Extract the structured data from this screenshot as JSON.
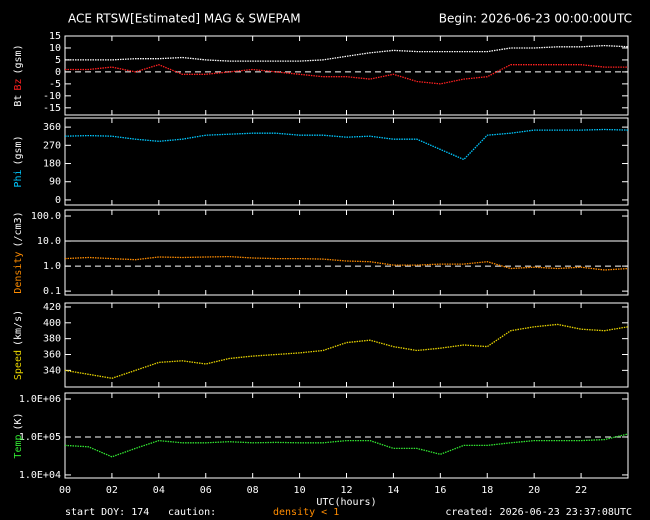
{
  "header": {
    "title": "ACE RTSW[Estimated] MAG & SWEPAM",
    "begin": "Begin: 2026-06-23 00:00:00UTC"
  },
  "chart_data": [
    {
      "type": "line",
      "ylabel_parts": [
        {
          "text": "Bt",
          "color": "#ffffff"
        },
        {
          "text": "Bz",
          "color": "#ff2020"
        },
        {
          "text": "(gsm)",
          "color": "#ffffff"
        }
      ],
      "x": [
        0,
        1,
        2,
        3,
        4,
        5,
        6,
        7,
        8,
        9,
        10,
        11,
        12,
        13,
        14,
        15,
        16,
        17,
        18,
        19,
        20,
        21,
        22,
        23,
        24
      ],
      "series": [
        {
          "name": "Bt",
          "color": "#ffffff",
          "values": [
            5,
            5,
            5,
            5.5,
            5.5,
            6,
            5,
            4.5,
            4.5,
            4.5,
            4.5,
            5,
            6.5,
            8,
            9,
            8.5,
            8.5,
            8.5,
            8.5,
            10,
            10,
            10.5,
            10.5,
            11,
            10.5
          ]
        },
        {
          "name": "Bz",
          "color": "#ff2020",
          "values": [
            1,
            1,
            2,
            0,
            3,
            -1,
            -1,
            0,
            1,
            0,
            -1,
            -2,
            -2,
            -3,
            -1,
            -4,
            -5,
            -3,
            -2,
            3,
            3,
            3,
            3,
            2,
            2
          ]
        }
      ],
      "ref_lines": [
        {
          "value": 0,
          "dashed": true
        }
      ],
      "xlim": [
        0,
        24
      ],
      "ylim": [
        -18,
        15
      ],
      "log": false,
      "yticks": [
        15,
        10,
        5,
        0,
        -5,
        -10,
        -15
      ]
    },
    {
      "type": "line",
      "ylabel_parts": [
        {
          "text": "Phi",
          "color": "#00c8ff"
        },
        {
          "text": "(gsm)",
          "color": "#ffffff"
        }
      ],
      "x": [
        0,
        1,
        2,
        3,
        4,
        5,
        6,
        7,
        8,
        9,
        10,
        11,
        12,
        13,
        14,
        15,
        16,
        17,
        18,
        19,
        20,
        21,
        22,
        23,
        24
      ],
      "series": [
        {
          "name": "Phi",
          "color": "#00c8ff",
          "values": [
            315,
            318,
            315,
            300,
            290,
            300,
            320,
            325,
            330,
            330,
            320,
            320,
            310,
            315,
            300,
            300,
            250,
            200,
            320,
            330,
            345,
            345,
            345,
            348,
            345
          ]
        }
      ],
      "ref_lines": [],
      "xlim": [
        0,
        24
      ],
      "ylim": [
        -25,
        405
      ],
      "log": false,
      "yticks": [
        360,
        270,
        180,
        90,
        0
      ]
    },
    {
      "type": "line",
      "ylabel_parts": [
        {
          "text": "Density",
          "color": "#ff8c00"
        },
        {
          "text": "(/cm3)",
          "color": "#ffffff"
        }
      ],
      "x": [
        0,
        1,
        2,
        3,
        4,
        5,
        6,
        7,
        8,
        9,
        10,
        11,
        12,
        13,
        14,
        15,
        16,
        17,
        18,
        19,
        20,
        21,
        22,
        23,
        24
      ],
      "series": [
        {
          "name": "Density",
          "color": "#ff8c00",
          "values": [
            2,
            2.2,
            2,
            1.8,
            2.3,
            2.2,
            2.3,
            2.4,
            2.1,
            2,
            2,
            1.9,
            1.6,
            1.5,
            1.1,
            1.1,
            1.2,
            1.2,
            1.5,
            0.8,
            0.9,
            0.8,
            0.9,
            0.7,
            0.8
          ]
        }
      ],
      "ref_lines": [
        {
          "value": 10,
          "dashed": false
        },
        {
          "value": 1,
          "dashed": true
        }
      ],
      "xlim": [
        0,
        24
      ],
      "ylim": [
        0.07,
        174
      ],
      "log": true,
      "yticks": [
        {
          "value": 100,
          "label": "100.0"
        },
        {
          "value": 10,
          "label": "10.0"
        },
        {
          "value": 1,
          "label": "1.0"
        },
        0.1
      ]
    },
    {
      "type": "line",
      "ylabel_parts": [
        {
          "text": "Speed",
          "color": "#e6d200"
        },
        {
          "text": "(km/s)",
          "color": "#ffffff"
        }
      ],
      "x": [
        0,
        1,
        2,
        3,
        4,
        5,
        6,
        7,
        8,
        9,
        10,
        11,
        12,
        13,
        14,
        15,
        16,
        17,
        18,
        19,
        20,
        21,
        22,
        23,
        24
      ],
      "series": [
        {
          "name": "Speed",
          "color": "#e6d200",
          "values": [
            340,
            335,
            330,
            340,
            350,
            352,
            348,
            355,
            358,
            360,
            362,
            365,
            375,
            378,
            370,
            365,
            368,
            372,
            370,
            390,
            395,
            398,
            392,
            390,
            395
          ]
        }
      ],
      "ref_lines": [],
      "xlim": [
        0,
        24
      ],
      "ylim": [
        319,
        425
      ],
      "log": false,
      "yticks": [
        420,
        400,
        380,
        360,
        340
      ]
    },
    {
      "type": "line",
      "ylabel_parts": [
        {
          "text": "Temp",
          "color": "#32e632"
        },
        {
          "text": "(K)",
          "color": "#ffffff"
        }
      ],
      "x": [
        0,
        1,
        2,
        3,
        4,
        5,
        6,
        7,
        8,
        9,
        10,
        11,
        12,
        13,
        14,
        15,
        16,
        17,
        18,
        19,
        20,
        21,
        22,
        23,
        24
      ],
      "series": [
        {
          "name": "Temp",
          "color": "#32e632",
          "values": [
            60000,
            55000,
            30000,
            50000,
            80000,
            70000,
            70000,
            75000,
            70000,
            72000,
            70000,
            70000,
            80000,
            80000,
            50000,
            50000,
            35000,
            60000,
            60000,
            70000,
            80000,
            80000,
            80000,
            85000,
            120000
          ]
        }
      ],
      "ref_lines": [
        {
          "value": 100000,
          "dashed": true
        }
      ],
      "xlim": [
        0,
        24
      ],
      "ylim": [
        8300,
        1440000
      ],
      "log": true,
      "yticks": [
        {
          "value": 1000000,
          "label": "1.0E+06"
        },
        {
          "value": 100000,
          "label": "1.0E+05"
        },
        {
          "value": 10000,
          "label": "1.0E+04"
        }
      ],
      "xlabel": "UTC(hours)",
      "xticks": [
        {
          "value": 0,
          "label": "00"
        },
        {
          "value": 2,
          "label": "02"
        },
        {
          "value": 4,
          "label": "04"
        },
        {
          "value": 6,
          "label": "06"
        },
        {
          "value": 8,
          "label": "08"
        },
        10,
        12,
        14,
        16,
        18,
        20,
        22
      ]
    }
  ],
  "footer": {
    "start": "start DOY: 174",
    "caution": "caution:",
    "caution_note": "density < 1",
    "created": "created: 2026-06-23 23:37:08UTC"
  }
}
